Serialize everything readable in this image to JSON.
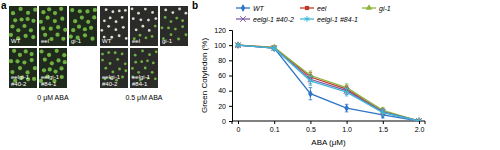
{
  "panel_a": {
    "label": "a",
    "conditions": [
      {
        "name": "0 μM ABA",
        "genotypes": [
          "WT",
          "eel",
          "gi-1",
          "eelgi-1 #40-2",
          "eelgi-1 #84-1"
        ]
      },
      {
        "name": "0.5 μM ABA",
        "genotypes": [
          "WT",
          "eel",
          "gi-1",
          "eelgi-1 #40-2",
          "eelgi-1 #84-1"
        ]
      }
    ]
  },
  "chart_data": {
    "type": "line",
    "annotations": [
      "b"
    ],
    "x_label": "ABA (μM)",
    "y_label": "Green Cotyledon (%)",
    "categories": [
      "0",
      "0.1",
      "0.5",
      "1.0",
      "1.5",
      "2.0"
    ],
    "ylim": [
      0,
      120
    ],
    "yticks": [
      0,
      20,
      40,
      60,
      80,
      100,
      120
    ],
    "legend": "top",
    "grid": false,
    "series": [
      {
        "name": "WT",
        "color": "#2e75c7",
        "marker": "diamond",
        "values": [
          100,
          96,
          36,
          17,
          8,
          0
        ],
        "errors": [
          0,
          2,
          8,
          5,
          4,
          0
        ]
      },
      {
        "name": "eel",
        "color": "#c0392b",
        "marker": "square",
        "values": [
          100,
          97,
          58,
          42,
          12,
          0
        ],
        "errors": [
          0,
          2,
          6,
          5,
          4,
          0
        ]
      },
      {
        "name": "gi-1",
        "color": "#8cb33a",
        "marker": "triangle",
        "values": [
          100,
          97,
          60,
          44,
          14,
          0
        ],
        "errors": [
          0,
          2,
          6,
          5,
          4,
          0
        ]
      },
      {
        "name": "eelgi-1 #40-2",
        "color": "#7d5ba6",
        "marker": "x",
        "values": [
          100,
          96,
          55,
          40,
          12,
          0
        ],
        "errors": [
          0,
          2,
          6,
          5,
          4,
          0
        ]
      },
      {
        "name": "eelgi-1 #84-1",
        "color": "#3fb8d6",
        "marker": "asterisk",
        "values": [
          100,
          96,
          53,
          38,
          11,
          0
        ],
        "errors": [
          0,
          2,
          6,
          5,
          4,
          0
        ]
      }
    ]
  }
}
